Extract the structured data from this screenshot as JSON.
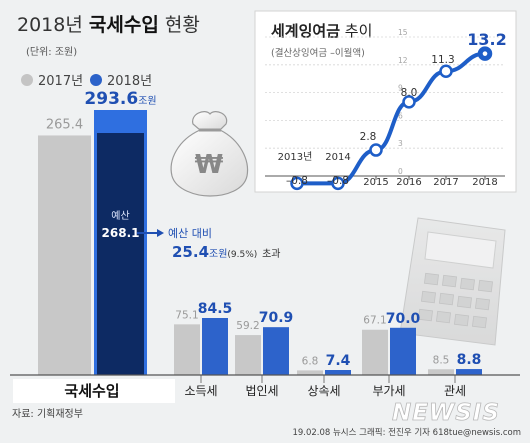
{
  "header": {
    "title_year": "2018년",
    "title_bold": "국세수입",
    "title_rest": "현황",
    "unit": "(단위: 조원)"
  },
  "legend": [
    {
      "label": "2017년",
      "color": "#c4c4c4"
    },
    {
      "label": "2018년",
      "color": "#2b62c9"
    }
  ],
  "colors": {
    "bar_2017": "#c8c8c8",
    "bar_2018": "#2d63cb",
    "total_2018": "#2f6fe0",
    "budget": "#0d2a63",
    "accent": "#1f4fb2"
  },
  "budget_note": {
    "label": "예산",
    "value": "268.1",
    "callout_label": "예산 대비",
    "callout_value": "25.4",
    "callout_unit": "조원",
    "callout_pct": "(9.5%)",
    "callout_suffix": "초과"
  },
  "total_2018_unit": "조원",
  "footer": {
    "source": "자료: 기획재정부",
    "credit": "19.02.08 뉴시스 그래픽: 전진우 기자 618tue@newsis.com",
    "watermark": "NEWSIS"
  },
  "chart_data": [
    {
      "type": "bar",
      "categories": [
        "국세수입",
        "소득세",
        "법인세",
        "상속세",
        "부가세",
        "관세"
      ],
      "series": [
        {
          "name": "2017년",
          "values": [
            265.4,
            75.1,
            59.2,
            6.8,
            67.1,
            8.5
          ],
          "labels": [
            "265.4",
            "75.1",
            "59.2",
            "6.8",
            "67.1",
            "8.5"
          ]
        },
        {
          "name": "2018년",
          "values": [
            293.6,
            84.5,
            70.9,
            7.4,
            70.0,
            8.8
          ],
          "labels": [
            "293.6",
            "84.5",
            "70.9",
            "7.4",
            "70.0",
            "8.8"
          ]
        }
      ],
      "budget": 268.1
    },
    {
      "type": "line",
      "title": "세계잉여금",
      "title_suffix": "추이",
      "subtitle": "(결산상잉여금 –이월액)",
      "x": [
        "2013년",
        "2014",
        "2015",
        "2016",
        "2017",
        "2018"
      ],
      "y": [
        -0.8,
        -0.8,
        2.8,
        8.0,
        11.3,
        13.2
      ],
      "labels": [
        "–0.8",
        "–0.8",
        "2.8",
        "8.0",
        "11.3",
        "13.2"
      ],
      "ylim": [
        -3,
        15
      ],
      "yticks": [
        15,
        12,
        9,
        6,
        3,
        0
      ],
      "grid": true
    }
  ]
}
